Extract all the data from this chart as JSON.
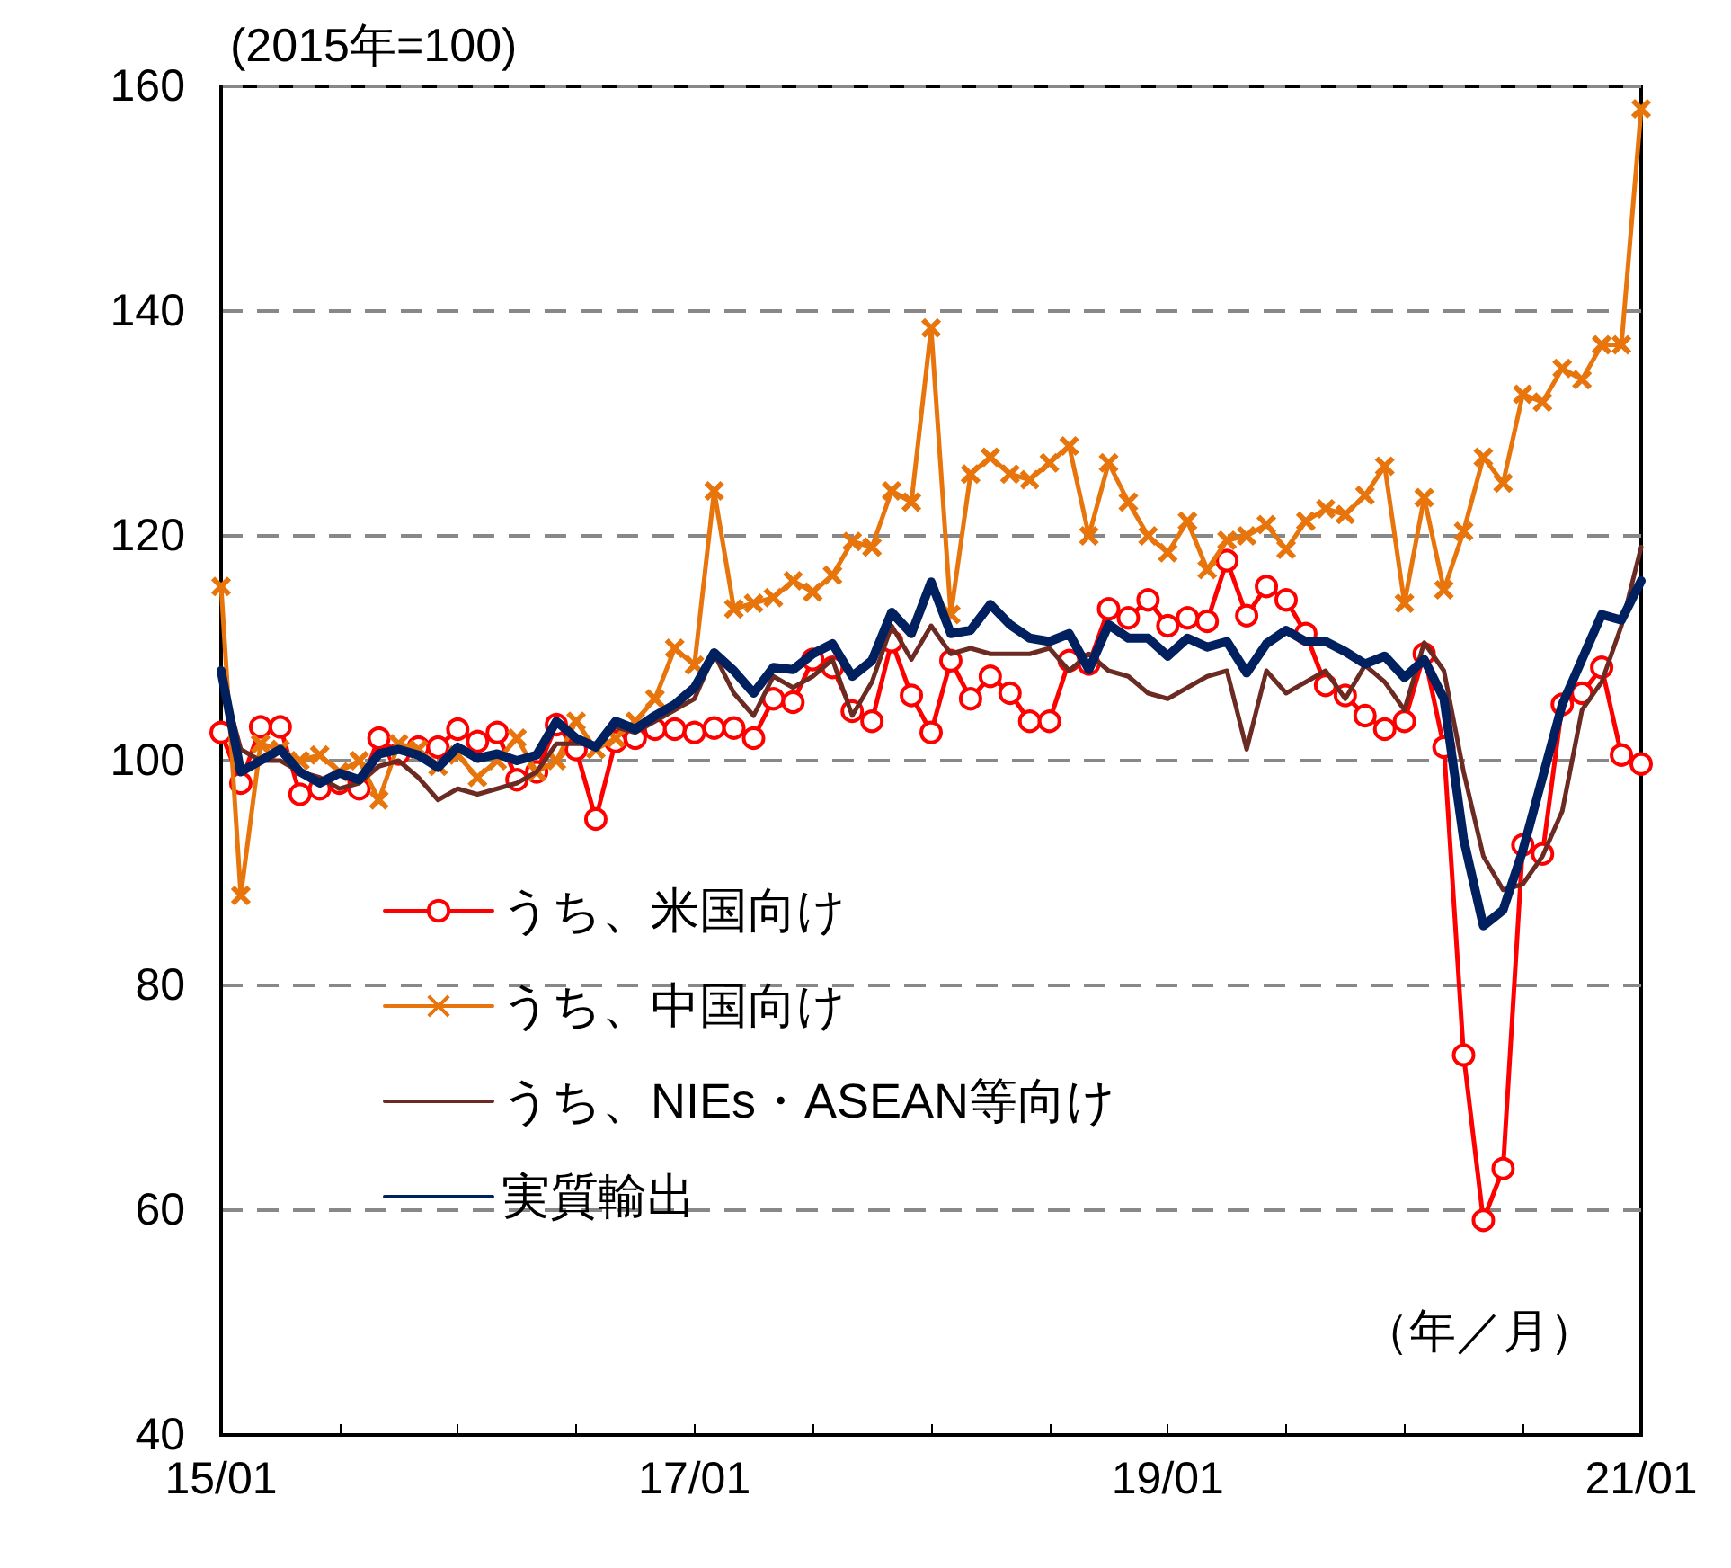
{
  "chart_data": {
    "type": "line",
    "ylabel": "(2015年=100)",
    "annotations": [
      "（年／月）"
    ],
    "categories": [
      "15/01",
      null,
      null,
      null,
      null,
      null,
      null,
      null,
      null,
      null,
      null,
      null,
      null,
      null,
      null,
      null,
      null,
      null,
      null,
      null,
      null,
      null,
      null,
      null,
      "17/01",
      null,
      null,
      null,
      null,
      null,
      null,
      null,
      null,
      null,
      null,
      null,
      null,
      null,
      null,
      null,
      null,
      null,
      null,
      null,
      null,
      null,
      null,
      null,
      "19/01",
      null,
      null,
      null,
      null,
      null,
      null,
      null,
      null,
      null,
      null,
      null,
      null,
      null,
      null,
      null,
      null,
      null,
      null,
      null,
      null,
      null,
      null,
      null,
      "21/01"
    ],
    "series": [
      {
        "name": "うち、米国向け",
        "color": "#ff0000",
        "marker": "circle",
        "values": [
          102.5,
          98,
          103,
          103,
          97,
          97.5,
          98,
          97.5,
          102,
          100.6,
          101.2,
          101.2,
          102.8,
          101.7,
          102.5,
          98.3,
          99,
          103.2,
          101,
          94.8,
          101.7,
          102,
          102.8,
          102.8,
          102.5,
          102.9,
          102.9,
          102,
          105.5,
          105.2,
          109,
          108.3,
          104.4,
          103.5,
          110.6,
          105.8,
          102.5,
          108.9,
          105.5,
          107.5,
          106,
          103.5,
          103.5,
          108.9,
          108.6,
          113.5,
          112.7,
          114.3,
          112,
          112.7,
          112.4,
          117.8,
          112.9,
          115.5,
          114.3,
          111.3,
          106.7,
          105.8,
          104,
          102.8,
          103.5,
          109.5,
          101.2,
          73.8,
          59.1,
          63.7,
          92.5,
          91.7,
          105,
          106,
          108.3,
          100.5,
          99.7
        ]
      },
      {
        "name": "うち、中国向け",
        "color": "#e8740c",
        "marker": "cross",
        "values": [
          115.5,
          88,
          101.5,
          101,
          100,
          100.5,
          99,
          100,
          96.5,
          101.5,
          101,
          99.5,
          100.5,
          98.5,
          100,
          102,
          99,
          100,
          103.5,
          101,
          102,
          103.5,
          105.5,
          110,
          108.5,
          124,
          113.5,
          114,
          114.5,
          116,
          115,
          116.5,
          119.5,
          119,
          124,
          123,
          138.5,
          113,
          125.5,
          127,
          125.5,
          125,
          126.5,
          128,
          120,
          126.5,
          123,
          120,
          118.5,
          121.3,
          117,
          119.6,
          120,
          121,
          118.8,
          121.3,
          122.4,
          121.9,
          123.6,
          126.2,
          114,
          123.4,
          115.2,
          120.4,
          127,
          124.7,
          132.6,
          131.9,
          134.9,
          133.9,
          137,
          137,
          158
        ]
      },
      {
        "name": "うち、NIEs・ASEAN等向け",
        "color": "#6b2a22",
        "marker": "none",
        "values": [
          107.5,
          101,
          100,
          100,
          99,
          98.5,
          97.5,
          98,
          99.5,
          100,
          98.5,
          96.5,
          97.5,
          97,
          97.5,
          98,
          99,
          101.5,
          101.5,
          101.5,
          103,
          102.5,
          103.5,
          104.5,
          105.5,
          109.5,
          106,
          104,
          107.5,
          106.5,
          107.5,
          109,
          104,
          107,
          112,
          109,
          112,
          109.5,
          110,
          109.5,
          109.5,
          109.5,
          110,
          108,
          109.5,
          108,
          107.5,
          106,
          105.5,
          106.5,
          107.5,
          108,
          101,
          108,
          106,
          107,
          108,
          105.5,
          108.5,
          107,
          104.5,
          110.5,
          108,
          99,
          91.5,
          88.5,
          89,
          91.5,
          95.5,
          104.5,
          107,
          112,
          119
        ]
      },
      {
        "name": "実質輸出",
        "color": "#002060",
        "marker": "none",
        "values": [
          108,
          99,
          100,
          101,
          99,
          98,
          98.9,
          98.3,
          100.6,
          101,
          100.5,
          99.4,
          101.2,
          100.2,
          100.6,
          100,
          100.5,
          103.5,
          102,
          101.2,
          103.5,
          102.8,
          104,
          105,
          106.5,
          109.6,
          108,
          106,
          108.3,
          108.1,
          109.5,
          110.4,
          107.5,
          108.9,
          113.2,
          111.3,
          115.9,
          111.3,
          111.6,
          113.9,
          112.1,
          110.9,
          110.6,
          111.3,
          108.1,
          112.1,
          110.9,
          110.9,
          109.3,
          110.9,
          110.1,
          110.6,
          107.8,
          110.4,
          111.6,
          110.6,
          110.6,
          109.7,
          108.6,
          109.3,
          107.4,
          109,
          105.5,
          93,
          85.3,
          86.7,
          92,
          98.5,
          105,
          109,
          113,
          112.5,
          116
        ]
      }
    ],
    "ylim": [
      40,
      160
    ],
    "yticks": [
      40,
      60,
      80,
      100,
      120,
      140,
      160
    ],
    "grid": "y",
    "legend": "bottom left"
  }
}
